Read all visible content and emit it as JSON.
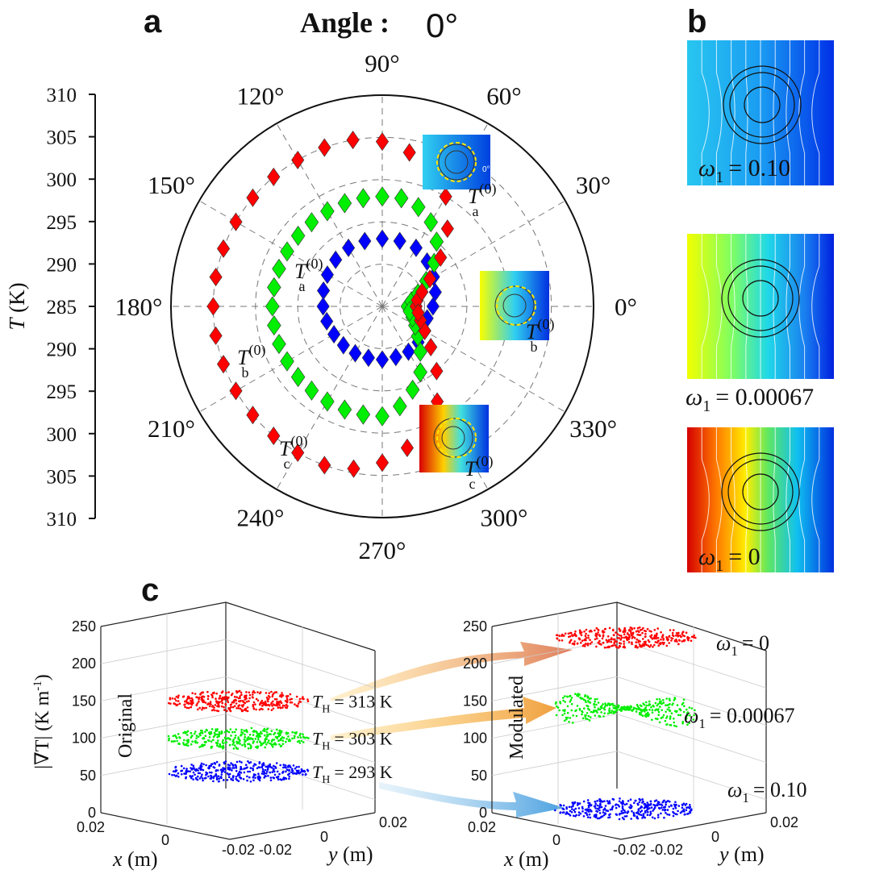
{
  "panels": {
    "a": "a",
    "b": "b",
    "c": "c"
  },
  "header": {
    "angle_label": "Angle :",
    "angle_value": "0°"
  },
  "chart_data": [
    {
      "type": "polar-scatter",
      "panel": "a",
      "ylabel_symbol": "T",
      "ylabel_unit": "(K)",
      "radial_ticks": [
        "310",
        "305",
        "300",
        "295",
        "290",
        "285",
        "290",
        "295",
        "300",
        "305",
        "310"
      ],
      "radial_range_K": [
        285,
        310
      ],
      "angle_ticks": [
        "0°",
        "30°",
        "60°",
        "90°",
        "120°",
        "150°",
        "180°",
        "210°",
        "240°",
        "270°",
        "300°",
        "330°"
      ],
      "grid": true,
      "series": [
        {
          "name": "T_a^(0)",
          "color": "#0000ff",
          "r": 292,
          "points": [
            [
              0,
              291
            ],
            [
              15,
              291.5
            ],
            [
              30,
              292
            ],
            [
              45,
              292.5
            ],
            [
              60,
              293
            ],
            [
              75,
              293
            ],
            [
              90,
              293
            ],
            [
              105,
              293
            ],
            [
              120,
              293
            ],
            [
              135,
              292.8
            ],
            [
              150,
              292.5
            ],
            [
              165,
              292.2
            ],
            [
              180,
              292
            ],
            [
              195,
              291.8
            ],
            [
              210,
              291.6
            ],
            [
              225,
              291.5
            ],
            [
              240,
              291.4
            ],
            [
              255,
              291.3
            ],
            [
              270,
              291.3
            ],
            [
              285,
              291.2
            ],
            [
              300,
              291.2
            ],
            [
              315,
              291
            ],
            [
              330,
              290.8
            ],
            [
              345,
              290.5
            ]
          ]
        },
        {
          "name": "T_b^(0)",
          "color": "#00ee00",
          "points": [
            [
              0,
              288
            ],
            [
              10,
              288.5
            ],
            [
              20,
              289.5
            ],
            [
              30,
              291
            ],
            [
              40,
              293
            ],
            [
              50,
              295
            ],
            [
              60,
              296.5
            ],
            [
              70,
              297.5
            ],
            [
              80,
              298
            ],
            [
              90,
              298
            ],
            [
              100,
              298
            ],
            [
              110,
              298
            ],
            [
              120,
              298
            ],
            [
              130,
              298
            ],
            [
              140,
              298
            ],
            [
              150,
              298
            ],
            [
              160,
              298
            ],
            [
              170,
              298
            ],
            [
              180,
              298
            ],
            [
              190,
              298
            ],
            [
              200,
              298
            ],
            [
              210,
              298
            ],
            [
              220,
              298
            ],
            [
              230,
              298
            ],
            [
              240,
              298
            ],
            [
              250,
              298
            ],
            [
              260,
              298
            ],
            [
              270,
              298
            ],
            [
              280,
              297
            ],
            [
              290,
              295.5
            ],
            [
              300,
              294
            ],
            [
              310,
              292
            ],
            [
              320,
              290.5
            ],
            [
              330,
              289.5
            ],
            [
              340,
              288.8
            ],
            [
              350,
              288.3
            ]
          ]
        },
        {
          "name": "T_c^(0)",
          "color": "#ff0000",
          "points": [
            [
              0,
              289
            ],
            [
              10,
              289.2
            ],
            [
              20,
              290
            ],
            [
              30,
              291.5
            ],
            [
              40,
              294
            ],
            [
              50,
              297
            ],
            [
              60,
              300
            ],
            [
              70,
              302
            ],
            [
              80,
              303.5
            ],
            [
              90,
              304.5
            ],
            [
              100,
              305
            ],
            [
              110,
              305
            ],
            [
              120,
              305
            ],
            [
              130,
              305
            ],
            [
              140,
              305
            ],
            [
              150,
              305
            ],
            [
              160,
              305
            ],
            [
              170,
              305
            ],
            [
              180,
              305
            ],
            [
              190,
              305
            ],
            [
              200,
              305
            ],
            [
              210,
              305
            ],
            [
              220,
              305
            ],
            [
              230,
              305
            ],
            [
              240,
              305
            ],
            [
              250,
              305
            ],
            [
              260,
              304.5
            ],
            [
              270,
              303.5
            ],
            [
              280,
              302
            ],
            [
              290,
              300
            ],
            [
              300,
              298
            ],
            [
              310,
              295
            ],
            [
              320,
              292.5
            ],
            [
              330,
              290.8
            ],
            [
              340,
              289.8
            ],
            [
              350,
              289.3
            ]
          ]
        }
      ],
      "insets": [
        {
          "label_base": "T",
          "label_sub": "a",
          "label_sup": "(0)",
          "angle_mark": "0°"
        },
        {
          "label_base": "T",
          "label_sub": "b",
          "label_sup": "(0)"
        },
        {
          "label_base": "T",
          "label_sub": "c",
          "label_sup": "(0)"
        }
      ],
      "curve_labels": [
        {
          "base": "T",
          "sub": "a",
          "sup": "(0)"
        },
        {
          "base": "T",
          "sub": "b",
          "sup": "(0)"
        },
        {
          "base": "T",
          "sub": "c",
          "sup": "(0)"
        }
      ]
    },
    {
      "type": "heatmap",
      "panel": "b",
      "maps": [
        {
          "symbol": "ω",
          "sub": "1",
          "value": "= 0.10",
          "colors": [
            "#22b3f0",
            "#0a6ef2"
          ]
        },
        {
          "symbol": "ω",
          "sub": "1",
          "value": "= 0.00067",
          "colors": [
            "#e8ff00",
            "#0a2fe0"
          ]
        },
        {
          "symbol": "ω",
          "sub": "1",
          "value": "= 0",
          "colors": [
            "#e00000",
            "#0a2fe0"
          ]
        }
      ]
    },
    {
      "type": "scatter3d",
      "panel": "c",
      "plots": [
        {
          "side_label": "Original",
          "zlabel_symbol": "|∇T|",
          "zlabel_unit": "(K m",
          "zlabel_sup": "-1",
          "zlabel_close": ")",
          "zticks": [
            "250",
            "200",
            "150",
            "100",
            "50",
            "0"
          ],
          "zlim": [
            0,
            250
          ],
          "xlabel": "x (m)",
          "ylabel": "y (m)",
          "xticks": [
            "0.02",
            "0",
            "-0.02"
          ],
          "yticks": [
            "-0.02",
            "0",
            "0.02"
          ],
          "layers": [
            {
              "color": "#ff0000",
              "z": 150,
              "label_base": "T",
              "label_sub": "H",
              "label_value": "= 313 K"
            },
            {
              "color": "#00ee00",
              "z": 100,
              "label_base": "T",
              "label_sub": "H",
              "label_value": "= 303 K"
            },
            {
              "color": "#0000ff",
              "z": 55,
              "label_base": "T",
              "label_sub": "H",
              "label_value": "= 293 K"
            }
          ]
        },
        {
          "side_label": "Modulated",
          "zticks": [
            "250",
            "200",
            "150",
            "100",
            "50",
            "0"
          ],
          "zlim": [
            0,
            250
          ],
          "xlabel": "x (m)",
          "ylabel": "y (m)",
          "xticks": [
            "0.02",
            "0",
            "-0.02"
          ],
          "yticks": [
            "-0.02",
            "0",
            "0.02"
          ],
          "layers": [
            {
              "color": "#ff0000",
              "z": 235,
              "symbol": "ω",
              "sub": "1",
              "value": "= 0"
            },
            {
              "color": "#00ee00",
              "z": 140,
              "symbol": "ω",
              "sub": "1",
              "value": "= 0.00067"
            },
            {
              "color": "#0000ff",
              "z": 5,
              "symbol": "ω",
              "sub": "1",
              "value": "= 0.10"
            }
          ]
        }
      ]
    }
  ]
}
